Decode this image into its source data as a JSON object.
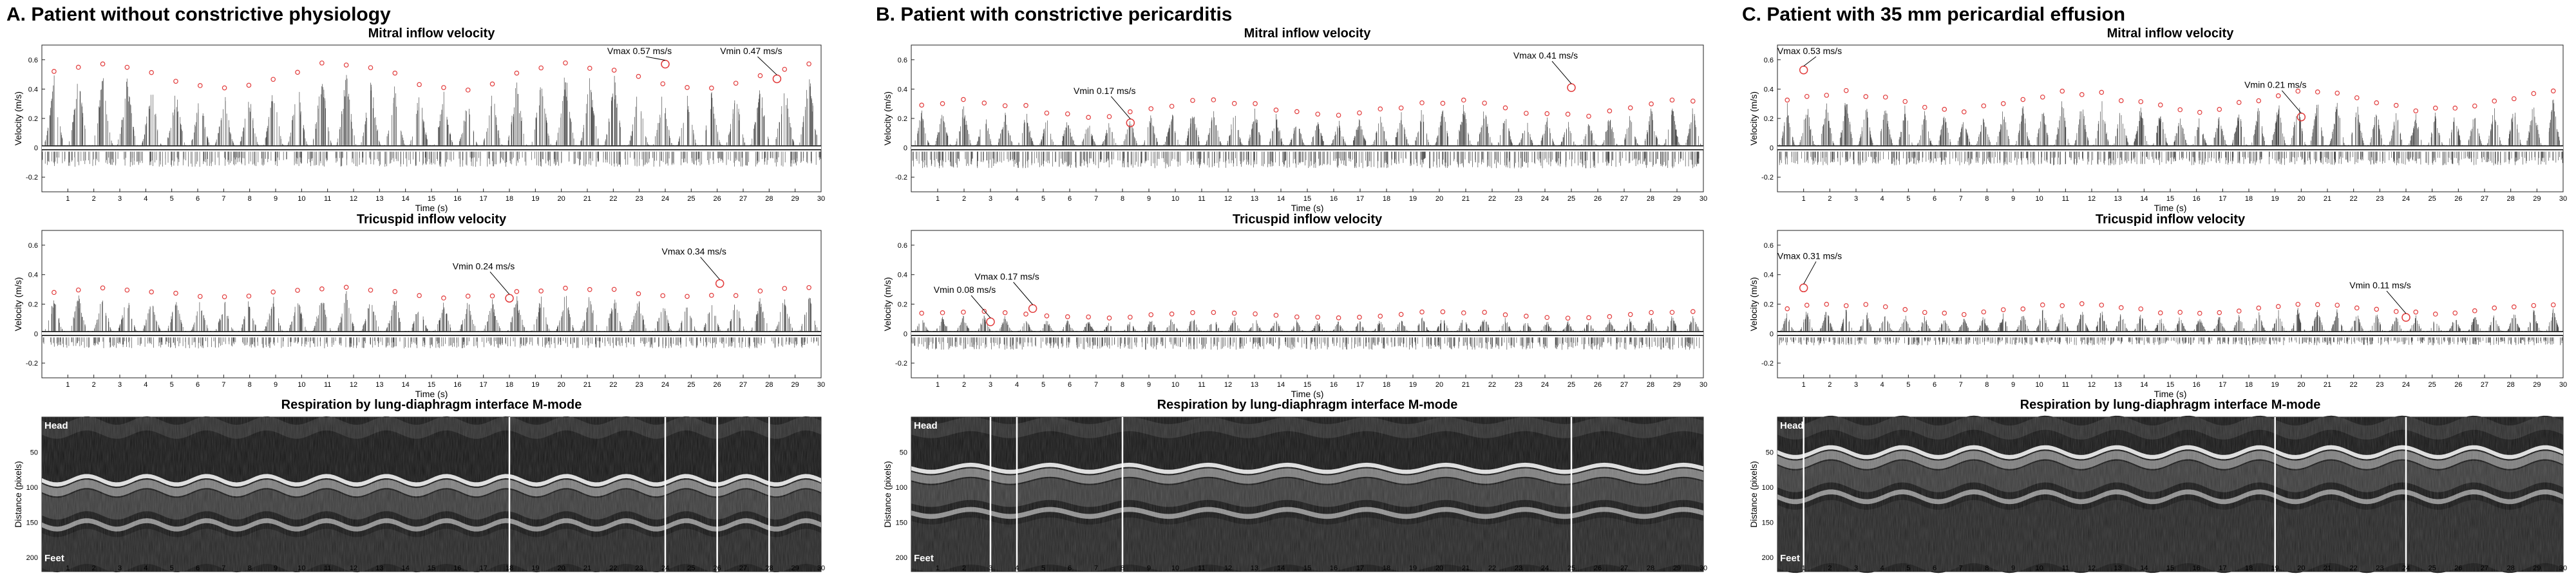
{
  "panels": [
    {
      "title": "A. Patient without constrictive physiology",
      "mitral": {
        "title": "Mitral inflow velocity",
        "peak": 0.55,
        "depth": 0.16,
        "beats": 32,
        "trough": -0.13,
        "annotations": [
          {
            "text": "Vmax 0.57 ms/s",
            "t": 24.0,
            "v": 0.57
          },
          {
            "text": "Vmin 0.47 ms/s",
            "t": 28.3,
            "v": 0.47
          }
        ]
      },
      "tricuspid": {
        "title": "Tricuspid inflow velocity",
        "peak": 0.29,
        "depth": 0.06,
        "beats": 32,
        "trough": -0.1,
        "annotations": [
          {
            "text": "Vmin 0.24 ms/s",
            "t": 18.0,
            "v": 0.24
          },
          {
            "text": "Vmax 0.34 ms/s",
            "t": 26.1,
            "v": 0.34
          }
        ]
      },
      "mmode": {
        "title": "Respiration by lung-diaphragm interface M-mode",
        "head": "Head",
        "feet": "Feet",
        "line_y": 95,
        "amp": 6,
        "cycles": 13,
        "markers": [
          18,
          24,
          26,
          28
        ]
      }
    },
    {
      "title": "B. Patient with constrictive pericarditis",
      "mitral": {
        "title": "Mitral inflow velocity",
        "peak": 0.3,
        "depth": 0.1,
        "beats": 38,
        "trough": -0.14,
        "annotations": [
          {
            "text": "Vmin 0.17 ms/s",
            "t": 8.3,
            "v": 0.17
          },
          {
            "text": "Vmax 0.41 ms/s",
            "t": 25.0,
            "v": 0.41
          }
        ]
      },
      "tricuspid": {
        "title": "Tricuspid inflow velocity",
        "peak": 0.13,
        "depth": 0.04,
        "beats": 38,
        "trough": -0.11,
        "annotations": [
          {
            "text": "Vmin 0.08 ms/s",
            "t": 3.0,
            "v": 0.08
          },
          {
            "text": "Vmax 0.17 ms/s",
            "t": 4.6,
            "v": 0.17
          }
        ]
      },
      "mmode": {
        "title": "Respiration by lung-diaphragm interface M-mode",
        "head": "Head",
        "feet": "Feet",
        "line_y": 78,
        "amp": 5,
        "cycles": 10,
        "markers": [
          3,
          4,
          8,
          25
        ]
      }
    },
    {
      "title": "C. Patient with 35 mm pericardial effusion",
      "mitral": {
        "title": "Mitral inflow velocity",
        "peak": 0.36,
        "depth": 0.12,
        "beats": 40,
        "trough": -0.12,
        "annotations": [
          {
            "text": "Vmax 0.53 ms/s",
            "t": 1.0,
            "v": 0.53
          },
          {
            "text": "Vmin 0.21 ms/s",
            "t": 20.0,
            "v": 0.21
          }
        ]
      },
      "tricuspid": {
        "title": "Tricuspid inflow velocity",
        "peak": 0.18,
        "depth": 0.06,
        "beats": 40,
        "trough": -0.08,
        "annotations": [
          {
            "text": "Vmax 0.31 ms/s",
            "t": 1.0,
            "v": 0.31
          },
          {
            "text": "Vmin 0.11 ms/s",
            "t": 24.0,
            "v": 0.11
          }
        ]
      },
      "mmode": {
        "title": "Respiration by lung-diaphragm interface M-mode",
        "head": "Head",
        "feet": "Feet",
        "line_y": 55,
        "amp": 7,
        "cycles": 11,
        "markers": [
          1,
          19,
          24
        ]
      }
    }
  ],
  "velocity_axis": {
    "ylabel": "Velocity (m/s)",
    "xlabel": "Time (s)",
    "ylim": [
      -0.3,
      0.7
    ],
    "yticks": [
      -0.2,
      0,
      0.2,
      0.4,
      0.6
    ],
    "xlim": [
      0,
      30
    ]
  },
  "mmode_axis": {
    "ylabel": "Distance (pixels)",
    "ylim": [
      0,
      220
    ],
    "yticks": [
      50,
      100,
      150,
      200
    ],
    "xlim": [
      0,
      30
    ]
  },
  "chart_data": {
    "type": "scatter",
    "x_range": [
      0,
      30
    ],
    "x_unit": "s",
    "y_unit": "m/s",
    "series_peak_markers": "red circles at each beat peak"
  }
}
